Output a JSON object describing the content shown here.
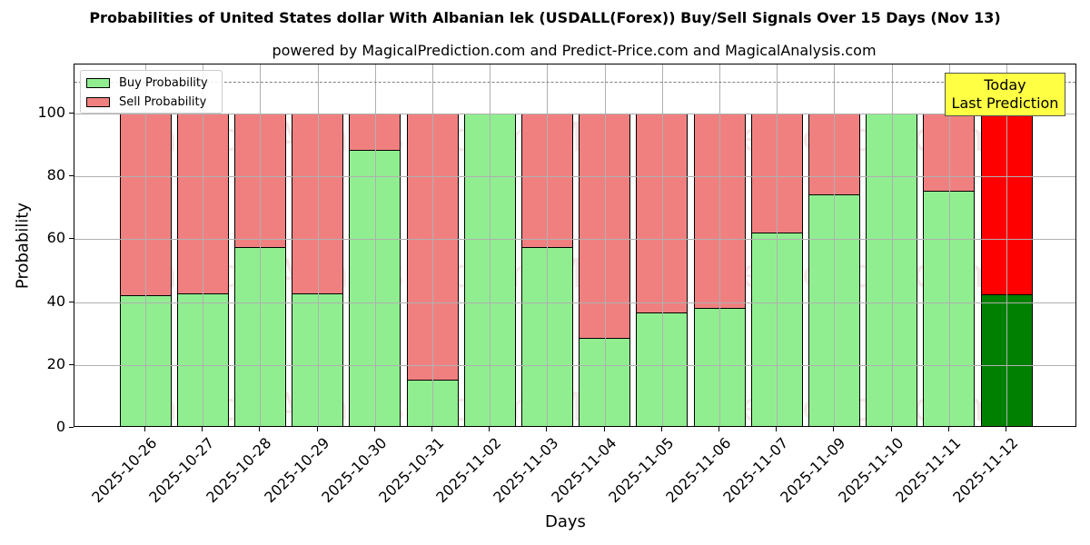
{
  "chart_data": {
    "type": "bar",
    "stacked": true,
    "title": "Probabilities of United States dollar With Albanian lek (USDALL(Forex)) Buy/Sell Signals Over 15 Days (Nov 13)",
    "subtitle": "powered by MagicalPrediction.com and Predict-Price.com and MagicalAnalysis.com",
    "xlabel": "Days",
    "ylabel": "Probability",
    "ylim": [
      0,
      115.6
    ],
    "yticks": [
      0,
      20,
      40,
      60,
      80,
      100
    ],
    "grid": true,
    "legend_position": "upper left",
    "reference_line": {
      "y": 110,
      "style": "dashed",
      "color": "#808080"
    },
    "categories": [
      "2025-10-26",
      "2025-10-27",
      "2025-10-28",
      "2025-10-29",
      "2025-10-30",
      "2025-10-31",
      "2025-11-02",
      "2025-11-03",
      "2025-11-04",
      "2025-11-05",
      "2025-11-06",
      "2025-11-07",
      "2025-11-09",
      "2025-11-10",
      "2025-11-11",
      "2025-11-12"
    ],
    "series": [
      {
        "name": "Buy Probability",
        "color": "#90ee90",
        "values": [
          42.3,
          42.9,
          57.4,
          42.9,
          88.3,
          15.2,
          99.9,
          57.6,
          28.7,
          36.8,
          38.2,
          62.0,
          74.4,
          99.9,
          75.3,
          42.4
        ]
      },
      {
        "name": "Sell Probability",
        "color": "#f08080",
        "values": [
          57.7,
          57.1,
          42.6,
          57.1,
          11.7,
          84.8,
          0.1,
          42.4,
          71.3,
          63.2,
          61.8,
          38.0,
          25.6,
          0.1,
          24.7,
          57.6
        ]
      }
    ],
    "highlight": {
      "index": 15,
      "buy_color": "#008000",
      "sell_color": "#ff0000"
    },
    "annotations": [
      {
        "text": "Today\nLast Prediction",
        "line1": "Today",
        "line2": "Last Prediction",
        "bg": "#ffff44"
      }
    ],
    "watermarks": [
      "MagicalAnalysis.com",
      "MagicalPrediction.com"
    ]
  },
  "legend": {
    "buy": "Buy Probability",
    "sell": "Sell Probability"
  }
}
